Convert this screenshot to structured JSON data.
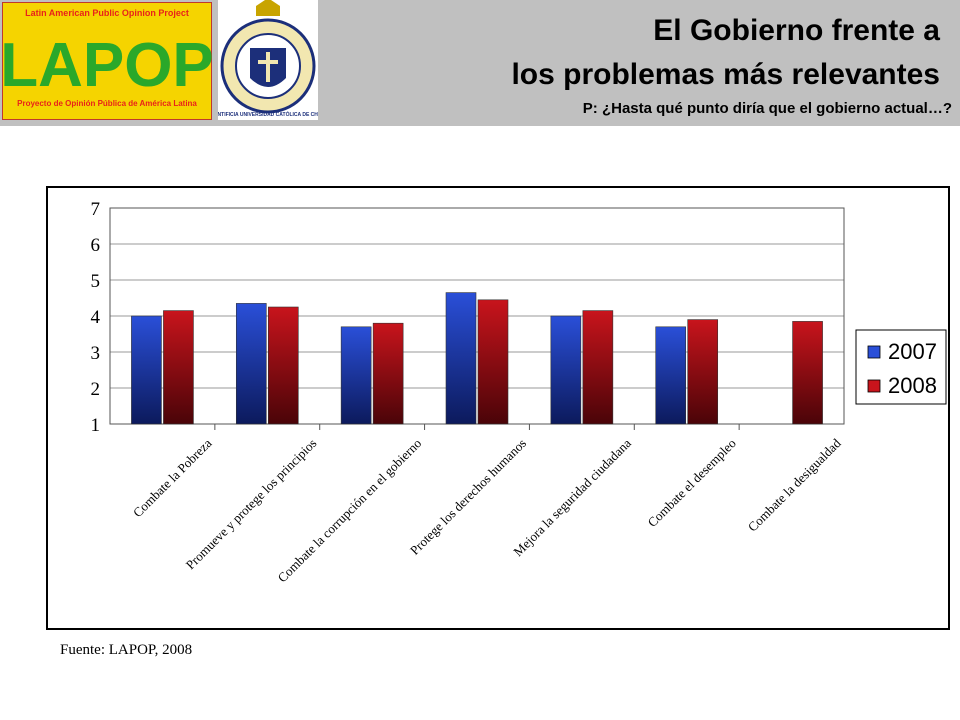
{
  "header": {
    "logo_top_text": "Latin American Public Opinion Project",
    "logo_main_text": "LAPOP",
    "logo_bottom_text": "Proyecto de Opinión Pública de América Latina",
    "seal_text": "PONTIFICIA UNIVERSIDAD CATÓLICA DE CHILE",
    "title_line1": "El Gobierno frente a",
    "title_line2": "los problemas más relevantes",
    "subtitle": "P: ¿Hasta qué punto diría que el gobierno actual…?"
  },
  "colors": {
    "header_bg": "#c0c0c0",
    "logo_bg": "#f5d400",
    "logo_green": "#2aa82a",
    "logo_red": "#e8231a",
    "series_2007": "#2a4fd8",
    "series_2008": "#c8141c"
  },
  "chart_data": {
    "type": "bar",
    "categories": [
      "Combate la Pobreza",
      "Promueve y protege los principios",
      "Combate la corrupción en el gobierno",
      "Protege los derechos humanos",
      "Mejora la seguridad ciudadana",
      "Combate el desempleo",
      "Combate la desigualdad"
    ],
    "series": [
      {
        "name": "2007",
        "values": [
          4.0,
          4.35,
          3.7,
          4.65,
          4.0,
          3.7,
          null
        ]
      },
      {
        "name": "2008",
        "values": [
          4.15,
          4.25,
          3.8,
          4.45,
          4.15,
          3.9,
          3.85
        ]
      }
    ],
    "ylim": [
      1,
      7
    ],
    "yticks": [
      "1",
      "2",
      "3",
      "4",
      "5",
      "6",
      "7"
    ],
    "grid": true,
    "legend": "right"
  },
  "source": "Fuente: LAPOP, 2008"
}
